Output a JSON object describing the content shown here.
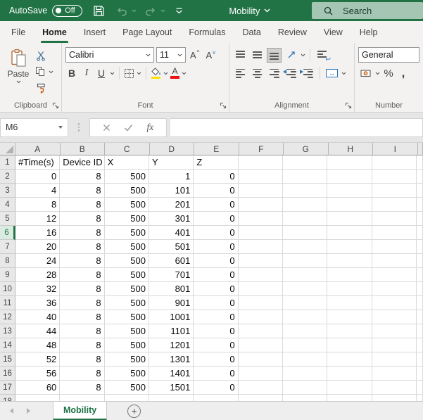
{
  "colors": {
    "excel_green": "#217346",
    "search_bg": "#a6c6b4",
    "highlight_yellow": "#ffe100",
    "font_color_red": "#e11111",
    "merge_blue": "#2e74b5"
  },
  "titlebar": {
    "autosave_label": "AutoSave",
    "autosave_state": "Off",
    "document_title": "Mobility",
    "search_label": "Search"
  },
  "active_tab": "Home",
  "ribbon_tabs": [
    "File",
    "Home",
    "Insert",
    "Page Layout",
    "Formulas",
    "Data",
    "Review",
    "View",
    "Help"
  ],
  "ribbon": {
    "paste_label": "Paste",
    "clipboard_label": "Clipboard",
    "font_label": "Font",
    "font_name": "Calibri",
    "font_size": "11",
    "grow_font": "A",
    "shrink_font": "A",
    "bold": "B",
    "italic": "I",
    "underline": "U",
    "font_color_letter": "A",
    "alignment_label": "Alignment",
    "number_label": "Number",
    "number_format": "General",
    "percent": "%",
    "comma": ","
  },
  "formula_bar": {
    "name_box": "M6",
    "fx_label": "fx",
    "formula_value": ""
  },
  "grid": {
    "column_headers": [
      "A",
      "B",
      "C",
      "D",
      "E",
      "F",
      "G",
      "H",
      "I"
    ],
    "active_row": 6,
    "rows": [
      {
        "n": 1,
        "cells": [
          "#Time(s)",
          "Device ID",
          "X",
          "Y",
          "Z",
          "",
          "",
          "",
          ""
        ]
      },
      {
        "n": 2,
        "cells": [
          "0",
          "8",
          "500",
          "1",
          "0",
          "",
          "",
          "",
          ""
        ]
      },
      {
        "n": 3,
        "cells": [
          "4",
          "8",
          "500",
          "101",
          "0",
          "",
          "",
          "",
          ""
        ]
      },
      {
        "n": 4,
        "cells": [
          "8",
          "8",
          "500",
          "201",
          "0",
          "",
          "",
          "",
          ""
        ]
      },
      {
        "n": 5,
        "cells": [
          "12",
          "8",
          "500",
          "301",
          "0",
          "",
          "",
          "",
          ""
        ]
      },
      {
        "n": 6,
        "cells": [
          "16",
          "8",
          "500",
          "401",
          "0",
          "",
          "",
          "",
          ""
        ]
      },
      {
        "n": 7,
        "cells": [
          "20",
          "8",
          "500",
          "501",
          "0",
          "",
          "",
          "",
          ""
        ]
      },
      {
        "n": 8,
        "cells": [
          "24",
          "8",
          "500",
          "601",
          "0",
          "",
          "",
          "",
          ""
        ]
      },
      {
        "n": 9,
        "cells": [
          "28",
          "8",
          "500",
          "701",
          "0",
          "",
          "",
          "",
          ""
        ]
      },
      {
        "n": 10,
        "cells": [
          "32",
          "8",
          "500",
          "801",
          "0",
          "",
          "",
          "",
          ""
        ]
      },
      {
        "n": 11,
        "cells": [
          "36",
          "8",
          "500",
          "901",
          "0",
          "",
          "",
          "",
          ""
        ]
      },
      {
        "n": 12,
        "cells": [
          "40",
          "8",
          "500",
          "1001",
          "0",
          "",
          "",
          "",
          ""
        ]
      },
      {
        "n": 13,
        "cells": [
          "44",
          "8",
          "500",
          "1101",
          "0",
          "",
          "",
          "",
          ""
        ]
      },
      {
        "n": 14,
        "cells": [
          "48",
          "8",
          "500",
          "1201",
          "0",
          "",
          "",
          "",
          ""
        ]
      },
      {
        "n": 15,
        "cells": [
          "52",
          "8",
          "500",
          "1301",
          "0",
          "",
          "",
          "",
          ""
        ]
      },
      {
        "n": 16,
        "cells": [
          "56",
          "8",
          "500",
          "1401",
          "0",
          "",
          "",
          "",
          ""
        ]
      },
      {
        "n": 17,
        "cells": [
          "60",
          "8",
          "500",
          "1501",
          "0",
          "",
          "",
          "",
          ""
        ]
      },
      {
        "n": 18,
        "cells": [
          "",
          "",
          "",
          "",
          "",
          "",
          "",
          "",
          ""
        ]
      }
    ]
  },
  "sheetbar": {
    "active_sheet": "Mobility",
    "add_label": "+"
  }
}
